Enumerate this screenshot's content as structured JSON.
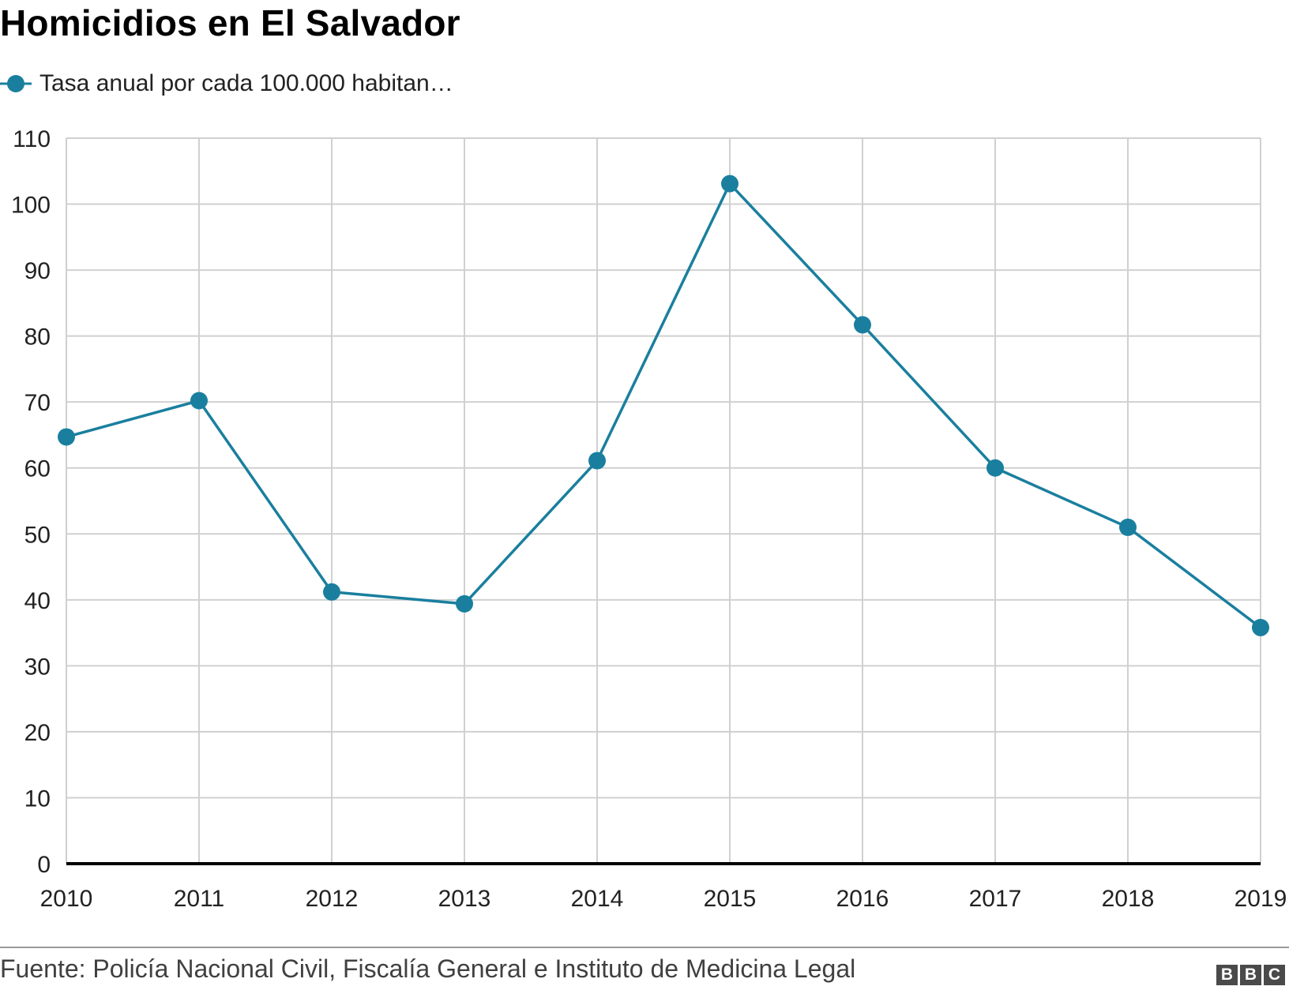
{
  "title": "Homicidios en El Salvador",
  "legend": {
    "label": "Tasa anual por cada 100.000 habitan…"
  },
  "source": "Fuente: Policía Nacional Civil, Fiscalía General e Instituto de Medicina Legal",
  "logo": "BBC",
  "colors": {
    "series": "#1a7f9e",
    "grid": "#d0d0d0",
    "baseline": "#000000",
    "text": "#222222"
  },
  "chart_data": {
    "type": "line",
    "x": [
      "2010",
      "2011",
      "2012",
      "2013",
      "2014",
      "2015",
      "2016",
      "2017",
      "2018",
      "2019"
    ],
    "series": [
      {
        "name": "Tasa anual por cada 100.000 habitan…",
        "values": [
          64.7,
          70.2,
          41.2,
          39.4,
          61.1,
          103.1,
          81.7,
          60.0,
          51.0,
          35.8
        ]
      }
    ],
    "yticks": [
      0,
      10,
      20,
      30,
      40,
      50,
      60,
      70,
      80,
      90,
      100,
      110
    ],
    "ylim": [
      0,
      110
    ],
    "grid": true,
    "legend_position": "top-left",
    "markers": true
  }
}
